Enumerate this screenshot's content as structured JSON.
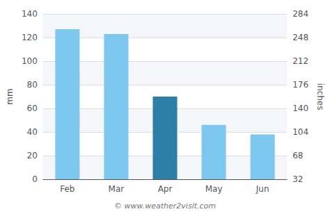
{
  "chart_data": {
    "type": "bar",
    "categories": [
      "Feb",
      "Mar",
      "Apr",
      "May",
      "Jun"
    ],
    "values": [
      127,
      123,
      70,
      46,
      38
    ],
    "colors": [
      "#7ec8f0",
      "#7ec8f0",
      "#2e7fa8",
      "#7ec8f0",
      "#7ec8f0"
    ],
    "ylabel": "mm",
    "y2label": "inches",
    "ylim": [
      0,
      140
    ],
    "yticks": [
      0,
      20,
      40,
      60,
      80,
      100,
      120,
      140
    ],
    "y2lim": [
      32,
      284
    ],
    "y2ticks": [
      32,
      68,
      104,
      140,
      176,
      212,
      248,
      284
    ],
    "grid": true,
    "annotation": "© www.weather2visit.com"
  }
}
